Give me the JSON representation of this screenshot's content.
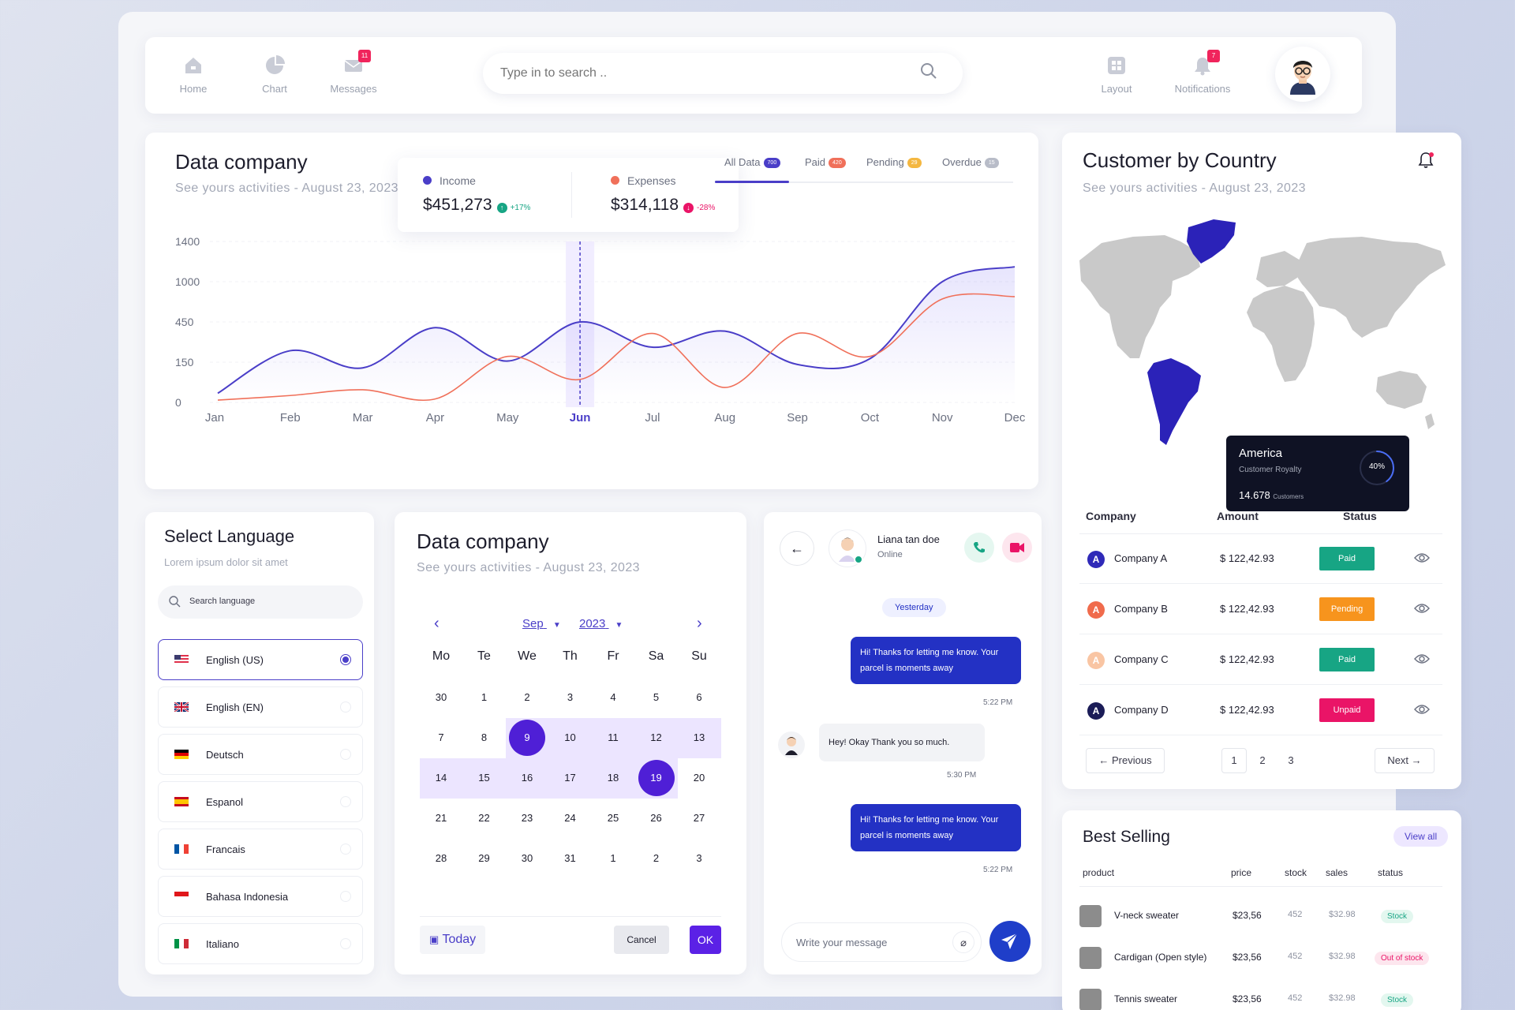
{
  "nav": {
    "home": "Home",
    "chart": "Chart",
    "messages": "Messages",
    "messages_badge": "11",
    "layout": "Layout",
    "notifications": "Notifications",
    "notifications_badge": "7"
  },
  "search": {
    "placeholder": "Type in to search .."
  },
  "chart_card": {
    "title": "Data company",
    "subtitle": "See yours activities - August 23, 2023",
    "income_label": "Income",
    "income_value": "$451,273",
    "income_change": "+17%",
    "expenses_label": "Expenses",
    "expenses_value": "$314,118",
    "expenses_change": "-28%",
    "tabs": [
      {
        "label": "All Data",
        "count": "700",
        "color": "#4a3ec8"
      },
      {
        "label": "Paid",
        "count": "420",
        "color": "#f0705a"
      },
      {
        "label": "Pending",
        "count": "29",
        "color": "#f4b740"
      },
      {
        "label": "Overdue",
        "count": "15",
        "color": "#b8bcc8"
      }
    ]
  },
  "chart_data": {
    "type": "line",
    "categories": [
      "Jan",
      "Feb",
      "Mar",
      "Apr",
      "May",
      "Jun",
      "Jul",
      "Aug",
      "Sep",
      "Oct",
      "Nov",
      "Dec"
    ],
    "highlight": "Jun",
    "y_ticks": [
      "1400",
      "1000",
      "450",
      "150",
      "0"
    ],
    "series": [
      {
        "name": "Income",
        "color": "#4a3ec8",
        "values": [
          80,
          450,
          300,
          650,
          360,
          700,
          480,
          620,
          330,
          380,
          1050,
          1180
        ]
      },
      {
        "name": "Expenses",
        "color": "#f0705a",
        "values": [
          20,
          60,
          110,
          30,
          400,
          200,
          600,
          130,
          600,
          400,
          900,
          920
        ]
      }
    ]
  },
  "country_card": {
    "title": "Customer by Country",
    "subtitle": "See yours activities - August 23, 2023",
    "tooltip_region": "America",
    "tooltip_label": "Customer Royalty",
    "tooltip_pct": "40%",
    "tooltip_value": "14.678",
    "tooltip_unit": "Customers",
    "columns": [
      "Company",
      "Amount",
      "Status"
    ],
    "rows": [
      {
        "initial": "A",
        "company": "Company A",
        "amount": "$ 122,42.93",
        "status": "Paid",
        "status_color": "#17a584",
        "icon_color": "#2f29b8"
      },
      {
        "initial": "A",
        "company": "Company B",
        "amount": "$ 122,42.93",
        "status": "Pending",
        "status_color": "#f7941d",
        "icon_color": "#f06b4c"
      },
      {
        "initial": "A",
        "company": "Company C",
        "amount": "$ 122,42.93",
        "status": "Paid",
        "status_color": "#17a584",
        "icon_color": "#f9c5a3"
      },
      {
        "initial": "A",
        "company": "Company D",
        "amount": "$ 122,42.93",
        "status": "Unpaid",
        "status_color": "#ea1467",
        "icon_color": "#1b1c57"
      }
    ],
    "prev": "Previous",
    "next": "Next",
    "pages": [
      "1",
      "2",
      "3"
    ]
  },
  "language_card": {
    "title": "Select Language",
    "subtitle": "Lorem ipsum dolor sit amet",
    "search_placeholder": "Search language",
    "languages": [
      "English (US)",
      "English (EN)",
      "Deutsch",
      "Espanol",
      "Francais",
      "Bahasa Indonesia",
      "Italiano"
    ]
  },
  "calendar_card": {
    "title": "Data company",
    "subtitle": "See yours activities - August 23, 2023",
    "month": "Sep",
    "year": "2023",
    "weekdays": [
      "Mo",
      "Te",
      "We",
      "Th",
      "Fr",
      "Sa",
      "Su"
    ],
    "weeks": [
      [
        "30",
        "1",
        "2",
        "3",
        "4",
        "5",
        "6"
      ],
      [
        "7",
        "8",
        "9",
        "10",
        "11",
        "12",
        "13"
      ],
      [
        "14",
        "15",
        "16",
        "17",
        "18",
        "19",
        "20"
      ],
      [
        "21",
        "22",
        "23",
        "24",
        "25",
        "26",
        "27"
      ],
      [
        "28",
        "29",
        "30",
        "31",
        "1",
        "2",
        "3"
      ]
    ],
    "range_start": "9",
    "range_end": "19",
    "today": "Today",
    "cancel": "Cancel",
    "ok": "OK"
  },
  "chat_card": {
    "name": "Liana tan doe",
    "status": "Online",
    "day_label": "Yesterday",
    "messages": [
      {
        "from": "me",
        "text": "Hi! Thanks for letting me know. Your parcel is moments away",
        "time": "5:22 PM"
      },
      {
        "from": "them",
        "text": "Hey! Okay Thank you so much.",
        "time": "5:30 PM"
      },
      {
        "from": "me",
        "text": "Hi! Thanks for letting me know. Your parcel is moments away",
        "time": "5:22 PM"
      }
    ],
    "input_placeholder": "Write your message"
  },
  "best_selling": {
    "title": "Best Selling",
    "view_all": "View all",
    "columns": [
      "product",
      "price",
      "stock",
      "sales",
      "status"
    ],
    "rows": [
      {
        "product": "V-neck sweater",
        "price": "$23,56",
        "stock": "452",
        "sales": "$32.98",
        "status": "Stock"
      },
      {
        "product": "Cardigan (Open style)",
        "price": "$23,56",
        "stock": "452",
        "sales": "$32.98",
        "status": "Out of stock"
      },
      {
        "product": "Tennis sweater",
        "price": "$23,56",
        "stock": "452",
        "sales": "$32.98",
        "status": "Stock"
      }
    ]
  }
}
